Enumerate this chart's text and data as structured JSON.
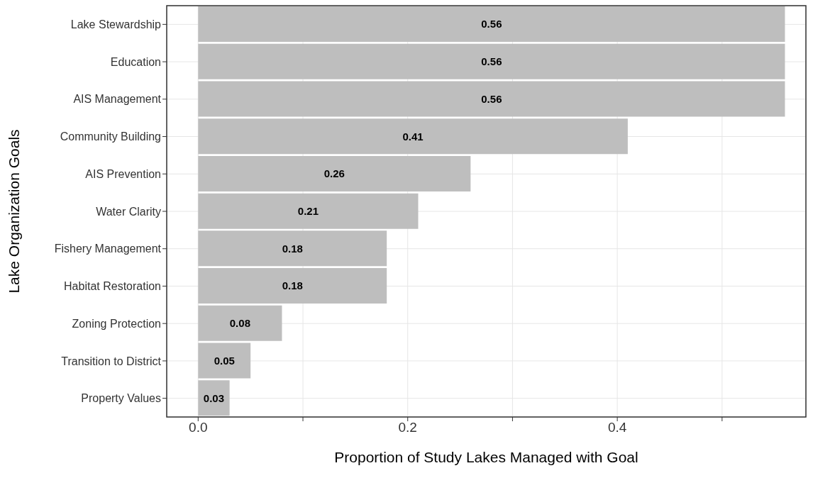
{
  "chart_data": {
    "type": "bar",
    "orientation": "horizontal",
    "xlabel": "Proportion of Study Lakes Managed with Goal",
    "ylabel": "Lake Organization Goals",
    "categories": [
      "Lake Stewardship",
      "Education",
      "AIS Management",
      "Community Building",
      "AIS Prevention",
      "Water Clarity",
      "Fishery Management",
      "Habitat Restoration",
      "Zoning Protection",
      "Transition to District",
      "Property Values"
    ],
    "values": [
      0.56,
      0.56,
      0.56,
      0.41,
      0.26,
      0.21,
      0.18,
      0.18,
      0.08,
      0.05,
      0.03
    ],
    "color": "#bebebe",
    "data_labels": true,
    "grid": true,
    "legend": false,
    "xlim": [
      -0.03,
      0.58
    ],
    "xticks": [
      {
        "value": 0,
        "label": "0.0"
      },
      {
        "value": 0.1,
        "label": null
      },
      {
        "value": 0.2,
        "label": "0.2"
      },
      {
        "value": 0.3,
        "label": null
      },
      {
        "value": 0.4,
        "label": "0.4"
      },
      {
        "value": 0.5,
        "label": null
      }
    ]
  }
}
